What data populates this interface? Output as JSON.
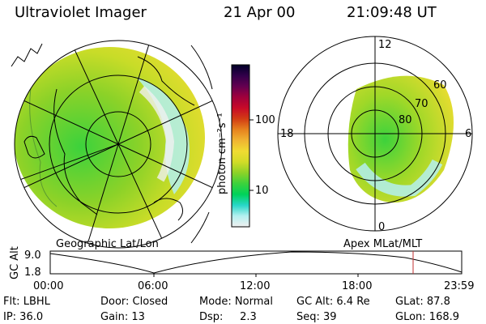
{
  "header": {
    "title": "Ultraviolet Imager",
    "date": "21 Apr 00",
    "time": "21:09:48 UT"
  },
  "colors": {
    "colorbar_stops": [
      "#f0f0f0",
      "#b4f0f0",
      "#28d7c8",
      "#00d25a",
      "#3cd23c",
      "#8cd228",
      "#d2dc28",
      "#f0dc32",
      "#f0b432",
      "#e6821e",
      "#d23c14",
      "#c80a28",
      "#a0003c",
      "#640050",
      "#32004a",
      "#000028"
    ],
    "image_low": "#b4f0f0",
    "image_mid": "#aadc30",
    "image_high": "#3cd23c",
    "cursor": "#c03030"
  },
  "colorbar": {
    "unit_label": "photon cm⁻²s⁻¹",
    "ticks": [
      {
        "label": "100",
        "value": 100
      },
      {
        "label": "10",
        "value": 10
      }
    ]
  },
  "geographic": {
    "label": "Geographic Lat/Lon"
  },
  "apex": {
    "label": "Apex MLat/MLT",
    "mlt_labels": {
      "top": "12",
      "left": "18",
      "right": "6",
      "bottom": "0"
    },
    "mlat_labels": [
      "80",
      "70",
      "60"
    ]
  },
  "altitude_plot": {
    "axis_label": "GC Alt",
    "y_max_label": "9.0",
    "y_min_label": "1.8",
    "x_ticks": [
      "00:00",
      "06:00",
      "12:00",
      "18:00",
      "23:59"
    ],
    "current_time_fraction": 0.8819
  },
  "info": {
    "row1": [
      {
        "key": "flt",
        "text": "Flt: LBHL"
      },
      {
        "key": "door",
        "text": "Door: Closed"
      },
      {
        "key": "mode",
        "text": "Mode: Normal"
      },
      {
        "key": "gcalt",
        "text": "GC Alt: 6.4 Re"
      },
      {
        "key": "glat",
        "text": "GLat: 87.8"
      }
    ],
    "row2": [
      {
        "key": "ip",
        "text": "IP: 36.0"
      },
      {
        "key": "gain",
        "text": "Gain: 13"
      },
      {
        "key": "dsp",
        "text": "Dsp:     2.3"
      },
      {
        "key": "seq",
        "text": "Seq: 39"
      },
      {
        "key": "glon",
        "text": "GLon: 168.9"
      }
    ]
  }
}
